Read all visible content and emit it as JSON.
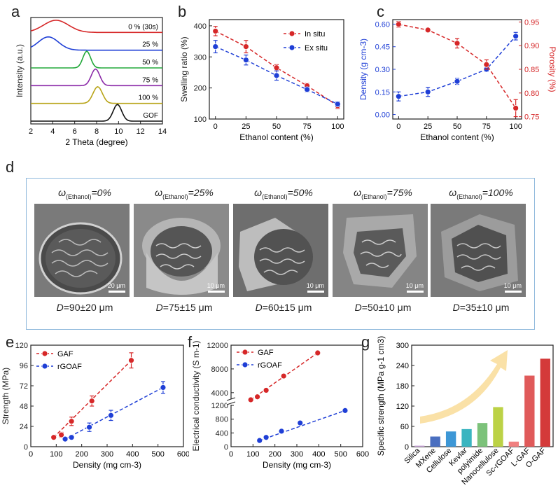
{
  "panel_labels": [
    "a",
    "b",
    "c",
    "d",
    "e",
    "f",
    "g"
  ],
  "chart_data": [
    {
      "id": "a",
      "type": "line",
      "xlabel": "2 Theta (degree)",
      "ylabel": "Intensity (a.u.)",
      "xlim": [
        2,
        14
      ],
      "xticks": [
        2,
        4,
        6,
        8,
        10,
        12,
        14
      ],
      "series": [
        {
          "name": "0 % (30s)",
          "color": "#d62728",
          "peak": 4.3,
          "width": 1.6,
          "height": 0.55
        },
        {
          "name": "25 %",
          "color": "#1f3fd6",
          "peak": 3.6,
          "width": 1.3,
          "height": 0.6
        },
        {
          "name": "50 %",
          "color": "#22a83a",
          "peak": 7.1,
          "width": 0.5,
          "height": 0.75
        },
        {
          "name": "75 %",
          "color": "#8b2aa8",
          "peak": 7.9,
          "width": 0.55,
          "height": 0.75
        },
        {
          "name": "100 %",
          "color": "#b8a418",
          "peak": 8.1,
          "width": 0.6,
          "height": 0.75
        },
        {
          "name": "GOF",
          "color": "#111111",
          "peak": 9.9,
          "width": 0.55,
          "height": 0.75
        }
      ]
    },
    {
      "id": "b",
      "type": "line",
      "xlabel": "Ethanol content (%)",
      "ylabel": "Swelling ratio (%)",
      "xlim": [
        -5,
        105
      ],
      "ylim": [
        100,
        420
      ],
      "xticks": [
        0,
        25,
        50,
        75,
        100
      ],
      "yticks": [
        100,
        200,
        300,
        400
      ],
      "series": [
        {
          "name": "In situ",
          "color": "#d62728",
          "x": [
            0,
            25,
            50,
            75,
            100
          ],
          "y": [
            383,
            333,
            265,
            207,
            143
          ],
          "err": [
            15,
            20,
            10,
            8,
            10
          ]
        },
        {
          "name": "Ex situ",
          "color": "#1f3fd6",
          "x": [
            0,
            25,
            50,
            75,
            100
          ],
          "y": [
            333,
            290,
            240,
            195,
            148
          ],
          "err": [
            20,
            16,
            15,
            8,
            8
          ]
        }
      ]
    },
    {
      "id": "c",
      "type": "line",
      "xlabel": "Ethanol content (%)",
      "ylabel": "Density (g cm-3)",
      "ylabel_right": "Porosity (%)",
      "xlim": [
        -5,
        105
      ],
      "ylim": [
        -0.03,
        0.63
      ],
      "ylim_right": [
        0.745,
        0.955
      ],
      "xticks": [
        0,
        25,
        50,
        75,
        100
      ],
      "yticks": [
        0.0,
        0.15,
        0.3,
        0.45,
        0.6
      ],
      "yticks_right": [
        0.75,
        0.8,
        0.85,
        0.9,
        0.95
      ],
      "series": [
        {
          "name": "Density",
          "axis": "left",
          "color": "#1f3fd6",
          "x": [
            0,
            25,
            50,
            75,
            100
          ],
          "y": [
            0.12,
            0.15,
            0.22,
            0.3,
            0.52
          ],
          "err": [
            0.03,
            0.03,
            0.02,
            0.015,
            0.025
          ]
        },
        {
          "name": "Porosity",
          "axis": "right",
          "color": "#d62728",
          "x": [
            0,
            25,
            50,
            75,
            100
          ],
          "y": [
            0.945,
            0.933,
            0.905,
            0.86,
            0.768
          ],
          "err": [
            0.006,
            0.004,
            0.01,
            0.01,
            0.018
          ]
        }
      ]
    },
    {
      "id": "e",
      "type": "scatter",
      "xlabel": "Density (mg cm-3)",
      "ylabel": "Strength (MPa)",
      "xlim": [
        0,
        600
      ],
      "ylim": [
        0,
        120
      ],
      "xticks": [
        0,
        100,
        200,
        300,
        400,
        500,
        600
      ],
      "yticks": [
        0,
        24,
        48,
        72,
        96,
        120
      ],
      "series": [
        {
          "name": "GAF",
          "color": "#d62728",
          "x": [
            90,
            120,
            160,
            240,
            395
          ],
          "y": [
            11,
            14,
            30,
            54,
            102
          ],
          "err": [
            1,
            3,
            5,
            6,
            9
          ]
        },
        {
          "name": "rGOAF",
          "color": "#1f3fd6",
          "x": [
            135,
            160,
            230,
            315,
            520
          ],
          "y": [
            9,
            11,
            23,
            37,
            70
          ],
          "err": [
            2,
            2,
            5,
            6,
            7
          ]
        }
      ]
    },
    {
      "id": "f",
      "type": "scatter",
      "xlabel": "Density (mg cm-3)",
      "ylabel": "Electrical conductivity (S m-1)",
      "xlim": [
        0,
        600
      ],
      "xticks": [
        0,
        100,
        200,
        300,
        400,
        500,
        600
      ],
      "yticks": [
        0,
        400,
        800,
        1200,
        4000,
        8000,
        12000
      ],
      "axis_break": [
        1200,
        1200
      ],
      "series": [
        {
          "name": "GAF",
          "color": "#d62728",
          "x": [
            90,
            120,
            160,
            240,
            395
          ],
          "y": [
            2800,
            3300,
            4400,
            6800,
            10700
          ]
        },
        {
          "name": "rGOAF",
          "color": "#1f3fd6",
          "x": [
            130,
            160,
            230,
            315,
            520
          ],
          "y": [
            180,
            270,
            450,
            690,
            1050
          ]
        }
      ]
    },
    {
      "id": "g",
      "type": "bar",
      "ylabel": "Specific strength (MPa g-1 cm3)",
      "ylim": [
        0,
        300
      ],
      "yticks": [
        0,
        60,
        120,
        180,
        240,
        300
      ],
      "categories": [
        "Silica",
        "MXene",
        "Cellulose",
        "Kevlar",
        "polyimide",
        "Nanocellulose",
        "Sc-rGOAF",
        "L-GAF",
        "O-GAF"
      ],
      "values": [
        3,
        30,
        45,
        52,
        70,
        117,
        15,
        210,
        260
      ],
      "colors": [
        "#c8a2d8",
        "#4a6fc0",
        "#3d97d6",
        "#3ab5c0",
        "#7cc27a",
        "#bcd246",
        "#f08080",
        "#e05a5a",
        "#d43a3a"
      ]
    }
  ],
  "sem": {
    "panels": [
      {
        "head_pre": "ω",
        "head_sub": "(Ethanol)",
        "head_post": "=0%",
        "scale": "20 μm",
        "d_label": "D",
        "d_value": "=90±20 μm"
      },
      {
        "head_pre": "ω",
        "head_sub": "(Ethanol)",
        "head_post": "=25%",
        "scale": "10 μm",
        "d_label": "D",
        "d_value": "=75±15 μm"
      },
      {
        "head_pre": "ω",
        "head_sub": "(Ethanol)",
        "head_post": "=50%",
        "scale": "10 μm",
        "d_label": "D",
        "d_value": "=60±15 μm"
      },
      {
        "head_pre": "ω",
        "head_sub": "(Ethanol)",
        "head_post": "=75%",
        "scale": "10 μm",
        "d_label": "D",
        "d_value": "=50±10 μm"
      },
      {
        "head_pre": "ω",
        "head_sub": "(Ethanol)",
        "head_post": "=100%",
        "scale": "10 μm",
        "d_label": "D",
        "d_value": "=35±10 μm"
      }
    ]
  }
}
